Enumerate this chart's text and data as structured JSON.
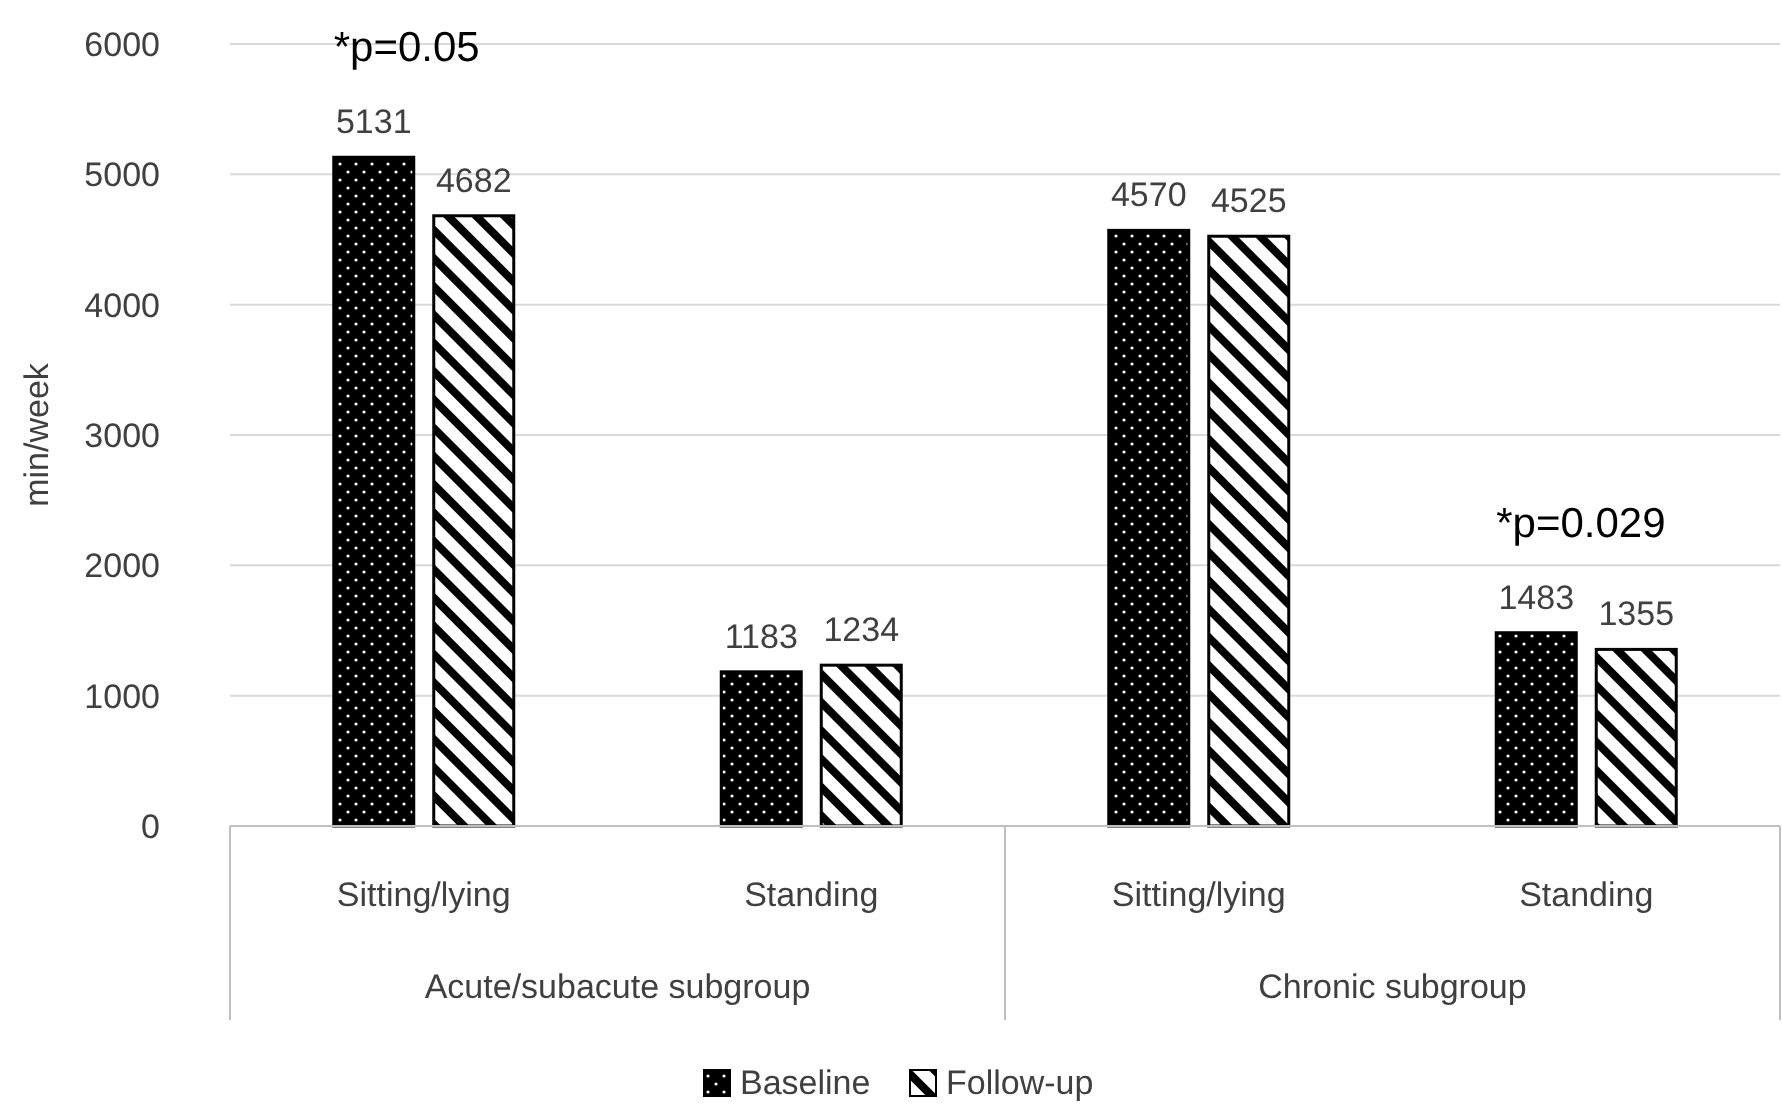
{
  "chart_data": {
    "type": "bar",
    "ylabel": "min/week",
    "categories": [
      "Sitting/lying",
      "Standing",
      "Sitting/lying",
      "Standing"
    ],
    "series": [
      {
        "name": "Baseline",
        "color": "#000000",
        "values": [
          5131,
          1183,
          4570,
          1483
        ]
      },
      {
        "name": "Follow-up",
        "color": "#000000",
        "values": [
          4682,
          1234,
          4525,
          1355
        ]
      }
    ],
    "ylim": [
      0,
      6000
    ],
    "yticks": [
      0,
      1000,
      2000,
      3000,
      4000,
      5000,
      6000
    ],
    "grid": "y",
    "legend": "bottom",
    "data_labels": true,
    "annotations": [
      "Acute/subacute subgroup",
      "Chronic subgroup",
      "*p=0.05",
      "*p=0.029"
    ]
  }
}
